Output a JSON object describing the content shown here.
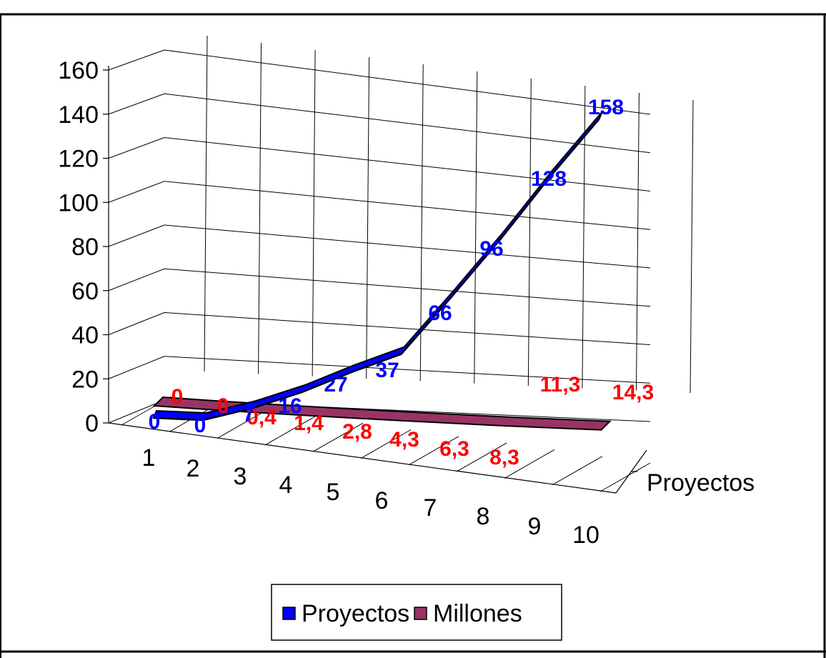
{
  "chart_data": {
    "type": "line",
    "three_d": true,
    "categories": [
      "1",
      "2",
      "3",
      "4",
      "5",
      "6",
      "7",
      "8",
      "9",
      "10"
    ],
    "ylim": [
      0,
      160
    ],
    "yticks": [
      "0",
      "20",
      "40",
      "60",
      "80",
      "100",
      "120",
      "140",
      "160"
    ],
    "depth_axis_label": "Proyectos",
    "grid": true,
    "legend_position": "bottom",
    "series": [
      {
        "name": "Proyectos",
        "color": "#0000ff",
        "values": [
          0,
          0,
          7,
          16,
          27,
          37,
          66,
          96,
          128,
          158
        ],
        "labels": [
          "0",
          "0",
          "7",
          "16",
          "27",
          "37",
          "66",
          "96",
          "128",
          "158"
        ]
      },
      {
        "name": "Millones",
        "color": "#993366",
        "label_color": "#ff0000",
        "values": [
          0,
          0,
          0.4,
          1.4,
          2.8,
          4.3,
          6.3,
          8.3,
          11.3,
          14.3
        ],
        "labels": [
          "0",
          "0",
          "0,4",
          "1,4",
          "2,8",
          "4,3",
          "6,3",
          "8,3",
          "11,3",
          "14,3"
        ]
      }
    ]
  },
  "legend": {
    "items": [
      {
        "label": "Proyectos",
        "color": "#0000ff"
      },
      {
        "label": "Millones",
        "color": "#993366"
      }
    ]
  }
}
